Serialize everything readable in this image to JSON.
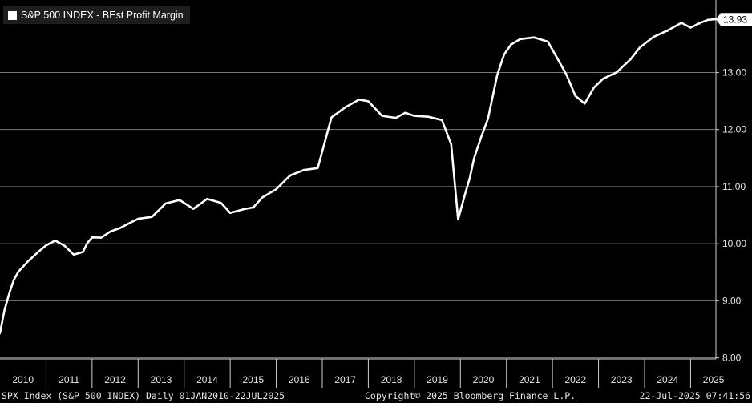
{
  "chart_data": {
    "type": "line",
    "title": "S&P 500 INDEX - BEst Profit Margin",
    "series": [
      {
        "name": "S&P 500 INDEX - BEst Profit Margin",
        "color": "#ffffff",
        "x": [
          2010.0,
          2010.1,
          2010.2,
          2010.3,
          2010.4,
          2010.6,
          2010.8,
          2011.0,
          2011.2,
          2011.4,
          2011.6,
          2011.8,
          2011.9,
          2012.0,
          2012.2,
          2012.4,
          2012.6,
          2012.8,
          2013.0,
          2013.3,
          2013.6,
          2013.9,
          2014.2,
          2014.5,
          2014.8,
          2015.0,
          2015.3,
          2015.5,
          2015.7,
          2016.0,
          2016.3,
          2016.6,
          2016.9,
          2017.2,
          2017.5,
          2017.8,
          2018.0,
          2018.3,
          2018.6,
          2018.8,
          2019.0,
          2019.3,
          2019.6,
          2019.8,
          2019.95,
          2020.1,
          2020.2,
          2020.3,
          2020.45,
          2020.6,
          2020.8,
          2020.95,
          2021.1,
          2021.3,
          2021.6,
          2021.9,
          2022.1,
          2022.3,
          2022.5,
          2022.7,
          2022.9,
          2023.1,
          2023.4,
          2023.7,
          2023.9,
          2024.2,
          2024.5,
          2024.8,
          2025.0,
          2025.2,
          2025.37,
          2025.55
        ],
        "values": [
          8.42,
          8.85,
          9.12,
          9.35,
          9.52,
          9.68,
          9.82,
          9.98,
          10.05,
          9.95,
          9.82,
          9.85,
          10.0,
          10.12,
          10.1,
          10.2,
          10.28,
          10.35,
          10.42,
          10.48,
          10.7,
          10.75,
          10.62,
          10.78,
          10.7,
          10.55,
          10.6,
          10.62,
          10.82,
          10.95,
          11.18,
          11.3,
          11.32,
          12.2,
          12.4,
          12.52,
          12.48,
          12.25,
          12.2,
          12.28,
          12.25,
          12.22,
          12.15,
          11.75,
          10.42,
          10.85,
          11.15,
          11.5,
          11.85,
          12.2,
          12.95,
          13.3,
          13.5,
          13.58,
          13.6,
          13.55,
          13.25,
          12.95,
          12.6,
          12.45,
          12.72,
          12.9,
          13.0,
          13.22,
          13.45,
          13.62,
          13.72,
          13.88,
          13.78,
          13.85,
          13.93,
          13.93
        ],
        "last_value_label": "13.93"
      }
    ],
    "x_ticks": [
      "2010",
      "2011",
      "2012",
      "2013",
      "2014",
      "2015",
      "2016",
      "2017",
      "2018",
      "2019",
      "2020",
      "2021",
      "2022",
      "2023",
      "2024",
      "2025"
    ],
    "y_ticks": [
      "8.00",
      "9.00",
      "10.00",
      "11.00",
      "12.00",
      "13.00"
    ],
    "xlim": [
      2010.0,
      2025.55
    ],
    "ylim": [
      7.98,
      14.27
    ],
    "grid": true,
    "legend_position": "top-left"
  },
  "footer": {
    "left": "SPX Index (S&P 500 INDEX)  Daily 01JAN2010-22JUL2025",
    "center": "Copyright© 2025 Bloomberg Finance L.P.",
    "right": "22-Jul-2025 07:41:56"
  }
}
